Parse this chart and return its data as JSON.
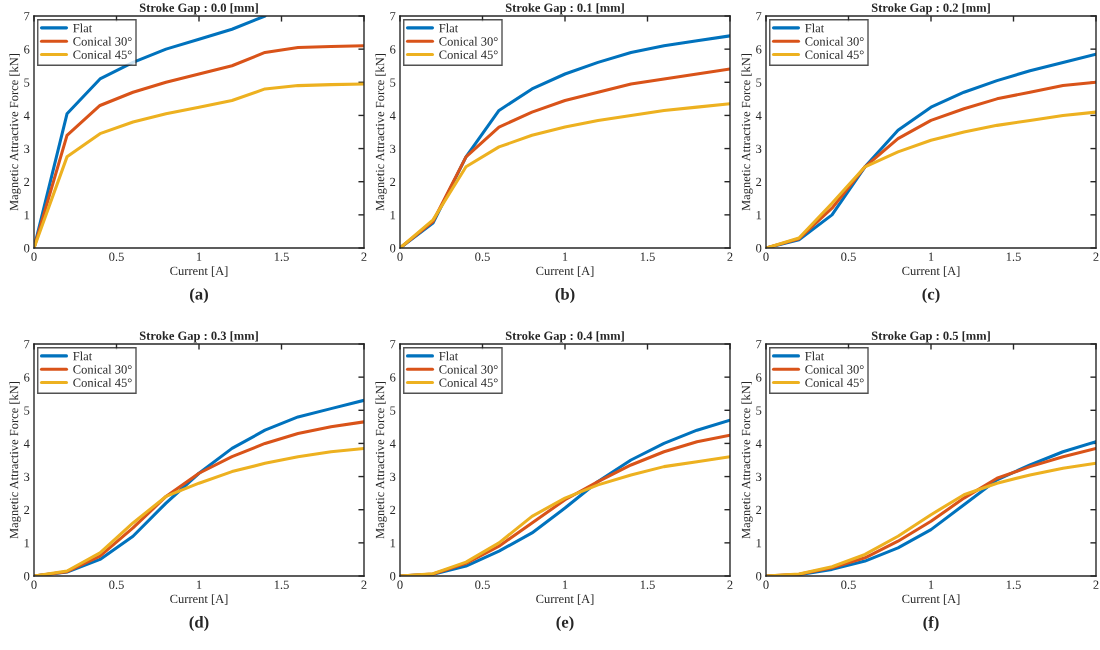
{
  "chart_data": [
    {
      "type": "line",
      "title": "Stroke Gap : 0.0 [mm]",
      "xlabel": "Current [A]",
      "ylabel": "Magnetic Attractive Force [kN]",
      "annotations": [
        "(a)"
      ],
      "legend": "top left",
      "xlim": [
        0,
        2
      ],
      "ylim": [
        0,
        7
      ],
      "xticks": [
        0,
        0.5,
        1,
        1.5,
        2
      ],
      "yticks": [
        0,
        1,
        2,
        3,
        4,
        5,
        6,
        7
      ],
      "x": [
        0,
        0.2,
        0.4,
        0.6,
        0.8,
        1.0,
        1.2,
        1.4,
        1.6,
        1.8,
        2.0
      ],
      "series": [
        {
          "name": "Flat",
          "color": "#0072bd",
          "values": [
            0,
            4.05,
            5.1,
            5.6,
            6.0,
            6.3,
            6.6,
            7.0,
            null,
            null,
            null
          ]
        },
        {
          "name": "Conical 30°",
          "color": "#d95319",
          "values": [
            0,
            3.4,
            4.3,
            4.7,
            5.0,
            5.25,
            5.5,
            5.9,
            6.05,
            6.08,
            6.1
          ]
        },
        {
          "name": "Conical 45°",
          "color": "#edb120",
          "values": [
            0,
            2.75,
            3.45,
            3.8,
            4.05,
            4.25,
            4.45,
            4.8,
            4.9,
            4.93,
            4.95
          ]
        }
      ]
    },
    {
      "type": "line",
      "title": "Stroke Gap : 0.1 [mm]",
      "xlabel": "Current [A]",
      "ylabel": "Magnetic Attractive Force [kN]",
      "annotations": [
        "(b)"
      ],
      "legend": "top left",
      "xlim": [
        0,
        2
      ],
      "ylim": [
        0,
        7
      ],
      "xticks": [
        0,
        0.5,
        1,
        1.5,
        2
      ],
      "yticks": [
        0,
        1,
        2,
        3,
        4,
        5,
        6,
        7
      ],
      "x": [
        0,
        0.2,
        0.4,
        0.6,
        0.8,
        1.0,
        1.2,
        1.4,
        1.6,
        1.8,
        2.0
      ],
      "series": [
        {
          "name": "Flat",
          "color": "#0072bd",
          "values": [
            0,
            0.75,
            2.75,
            4.15,
            4.8,
            5.25,
            5.6,
            5.9,
            6.1,
            6.25,
            6.4
          ]
        },
        {
          "name": "Conical 30°",
          "color": "#d95319",
          "values": [
            0,
            0.8,
            2.75,
            3.65,
            4.1,
            4.45,
            4.7,
            4.95,
            5.1,
            5.25,
            5.4
          ]
        },
        {
          "name": "Conical 45°",
          "color": "#edb120",
          "values": [
            0,
            0.85,
            2.45,
            3.05,
            3.4,
            3.65,
            3.85,
            4.0,
            4.15,
            4.25,
            4.35
          ]
        }
      ]
    },
    {
      "type": "line",
      "title": "Stroke Gap : 0.2 [mm]",
      "xlabel": "Current [A]",
      "ylabel": "Magnetic Attractive Force [kN]",
      "annotations": [
        "(c)"
      ],
      "legend": "top left",
      "xlim": [
        0,
        2
      ],
      "ylim": [
        0,
        7
      ],
      "xticks": [
        0,
        0.5,
        1,
        1.5,
        2
      ],
      "yticks": [
        0,
        1,
        2,
        3,
        4,
        5,
        6,
        7
      ],
      "x": [
        0,
        0.2,
        0.4,
        0.6,
        0.8,
        1.0,
        1.2,
        1.4,
        1.6,
        1.8,
        2.0
      ],
      "series": [
        {
          "name": "Flat",
          "color": "#0072bd",
          "values": [
            0,
            0.25,
            1.0,
            2.45,
            3.55,
            4.25,
            4.7,
            5.05,
            5.35,
            5.6,
            5.85
          ]
        },
        {
          "name": "Conical 30°",
          "color": "#d95319",
          "values": [
            0,
            0.28,
            1.2,
            2.45,
            3.3,
            3.85,
            4.2,
            4.5,
            4.7,
            4.9,
            5.0
          ]
        },
        {
          "name": "Conical 45°",
          "color": "#edb120",
          "values": [
            0,
            0.3,
            1.35,
            2.45,
            2.9,
            3.25,
            3.5,
            3.7,
            3.85,
            4.0,
            4.1
          ]
        }
      ]
    },
    {
      "type": "line",
      "title": "Stroke Gap : 0.3 [mm]",
      "xlabel": "Current [A]",
      "ylabel": "Magnetic Attractive Force [kN]",
      "annotations": [
        "(d)"
      ],
      "legend": "top left",
      "xlim": [
        0,
        2
      ],
      "ylim": [
        0,
        7
      ],
      "xticks": [
        0,
        0.5,
        1,
        1.5,
        2
      ],
      "yticks": [
        0,
        1,
        2,
        3,
        4,
        5,
        6,
        7
      ],
      "x": [
        0,
        0.2,
        0.4,
        0.6,
        0.8,
        1.0,
        1.2,
        1.4,
        1.6,
        1.8,
        2.0
      ],
      "series": [
        {
          "name": "Flat",
          "color": "#0072bd",
          "values": [
            0,
            0.12,
            0.5,
            1.2,
            2.2,
            3.1,
            3.85,
            4.4,
            4.8,
            5.05,
            5.3
          ]
        },
        {
          "name": "Conical 30°",
          "color": "#d95319",
          "values": [
            0,
            0.13,
            0.6,
            1.45,
            2.4,
            3.1,
            3.6,
            4.0,
            4.3,
            4.5,
            4.65
          ]
        },
        {
          "name": "Conical 45°",
          "color": "#edb120",
          "values": [
            0,
            0.15,
            0.7,
            1.6,
            2.4,
            2.8,
            3.15,
            3.4,
            3.6,
            3.75,
            3.85
          ]
        }
      ]
    },
    {
      "type": "line",
      "title": "Stroke Gap : 0.4 [mm]",
      "xlabel": "Current [A]",
      "ylabel": "Magnetic Attractive Force [kN]",
      "annotations": [
        "(e)"
      ],
      "legend": "top left",
      "xlim": [
        0,
        2
      ],
      "ylim": [
        0,
        7
      ],
      "xticks": [
        0,
        0.5,
        1,
        1.5,
        2
      ],
      "yticks": [
        0,
        1,
        2,
        3,
        4,
        5,
        6,
        7
      ],
      "x": [
        0,
        0.2,
        0.4,
        0.6,
        0.8,
        1.0,
        1.2,
        1.4,
        1.6,
        1.8,
        2.0
      ],
      "series": [
        {
          "name": "Flat",
          "color": "#0072bd",
          "values": [
            0,
            0.05,
            0.3,
            0.75,
            1.3,
            2.05,
            2.85,
            3.5,
            4.0,
            4.4,
            4.7
          ]
        },
        {
          "name": "Conical 30°",
          "color": "#d95319",
          "values": [
            0,
            0.06,
            0.38,
            0.9,
            1.6,
            2.3,
            2.85,
            3.35,
            3.75,
            4.05,
            4.25
          ]
        },
        {
          "name": "Conical 45°",
          "color": "#edb120",
          "values": [
            0,
            0.07,
            0.42,
            1.0,
            1.8,
            2.35,
            2.75,
            3.05,
            3.3,
            3.45,
            3.6
          ]
        }
      ]
    },
    {
      "type": "line",
      "title": "Stroke Gap : 0.5 [mm]",
      "xlabel": "Current [A]",
      "ylabel": "Magnetic Attractive Force [kN]",
      "annotations": [
        "(f)"
      ],
      "legend": "top left",
      "xlim": [
        0,
        2
      ],
      "ylim": [
        0,
        7
      ],
      "xticks": [
        0,
        0.5,
        1,
        1.5,
        2
      ],
      "yticks": [
        0,
        1,
        2,
        3,
        4,
        5,
        6,
        7
      ],
      "x": [
        0,
        0.2,
        0.4,
        0.6,
        0.8,
        1.0,
        1.2,
        1.4,
        1.6,
        1.8,
        2.0
      ],
      "series": [
        {
          "name": "Flat",
          "color": "#0072bd",
          "values": [
            0,
            0.04,
            0.2,
            0.45,
            0.85,
            1.4,
            2.15,
            2.9,
            3.35,
            3.75,
            4.05
          ]
        },
        {
          "name": "Conical 30°",
          "color": "#d95319",
          "values": [
            0,
            0.05,
            0.25,
            0.55,
            1.05,
            1.65,
            2.35,
            2.95,
            3.3,
            3.6,
            3.85
          ]
        },
        {
          "name": "Conical 45°",
          "color": "#edb120",
          "values": [
            0,
            0.06,
            0.28,
            0.65,
            1.2,
            1.85,
            2.45,
            2.8,
            3.05,
            3.25,
            3.4
          ]
        }
      ]
    }
  ]
}
